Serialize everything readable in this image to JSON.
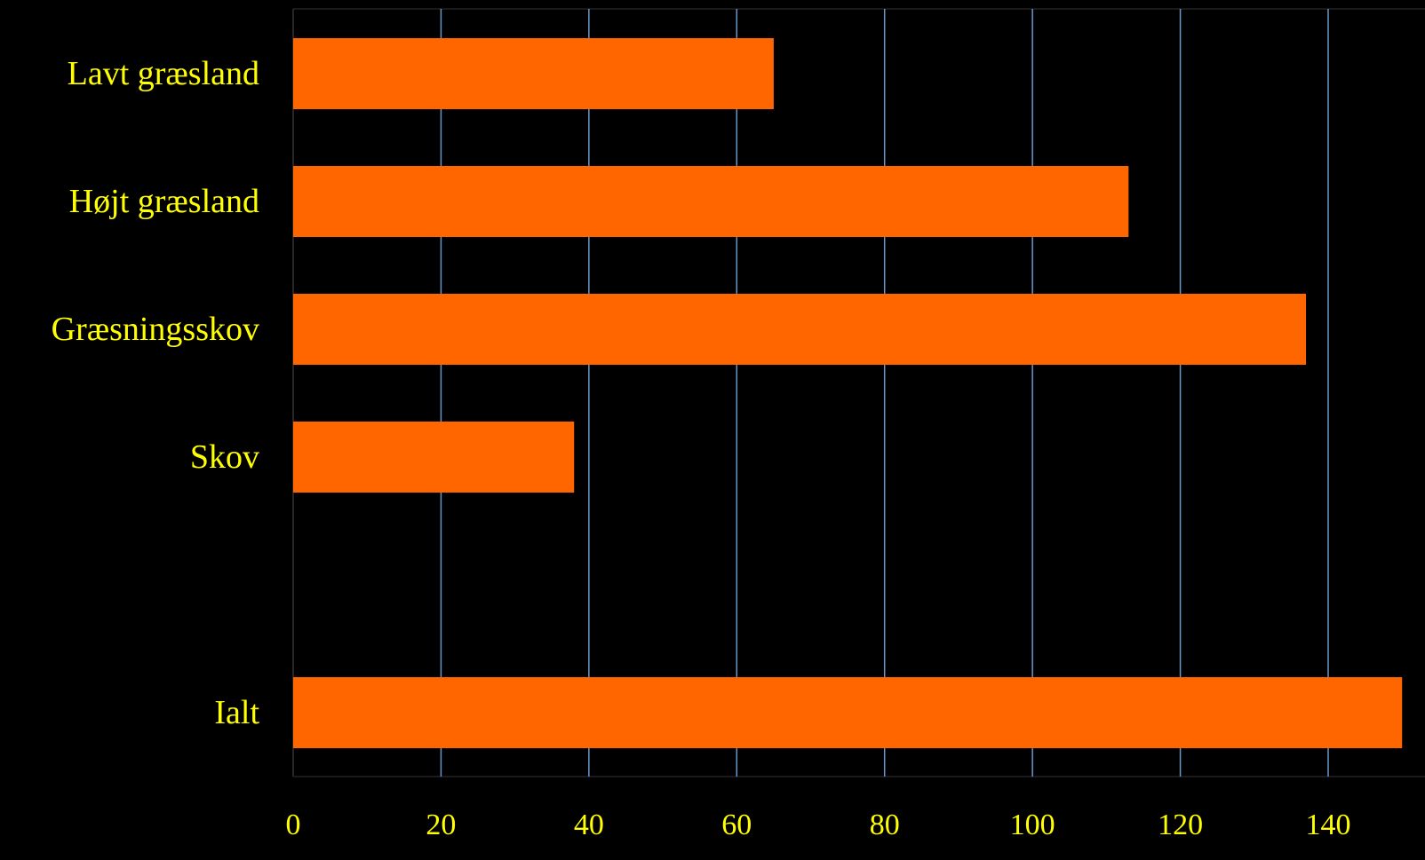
{
  "chart_data": {
    "type": "bar",
    "orientation": "horizontal",
    "title": "",
    "xlabel": "",
    "ylabel": "",
    "categories": [
      "Lavt græsland",
      "Højt græsland",
      "Græsningsskov",
      "Skov",
      "",
      "Ialt"
    ],
    "values": [
      65,
      113,
      137,
      38,
      null,
      150
    ],
    "xlim": [
      0,
      150
    ],
    "x_ticks": [
      0,
      20,
      40,
      60,
      80,
      100,
      120,
      140
    ],
    "grid": true,
    "legend": "none",
    "colors": {
      "background": "#000000",
      "bar": "#FF6600",
      "text": "#FFFF00",
      "grid": "#6699CC",
      "axis": "#333333"
    }
  }
}
